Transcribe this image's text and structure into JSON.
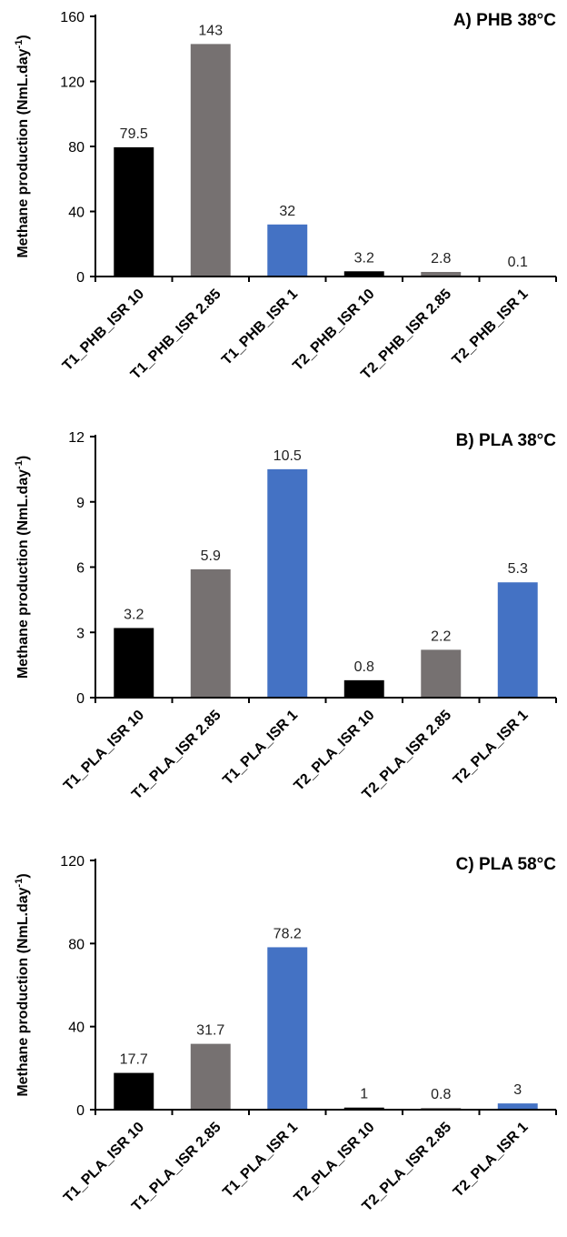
{
  "colors": {
    "black_bar": "#000000",
    "gray_bar": "#767171",
    "blue_bar": "#4472C4",
    "axis": "#000000"
  },
  "chart_data": [
    {
      "type": "bar",
      "title": "A) PHB 38°C",
      "ylabel": "Methane production (NmL.day",
      "ylabel_sup": "-1",
      "ylabel_close": ")",
      "ylim": [
        0,
        160
      ],
      "yticks": [
        0,
        40,
        80,
        120,
        160
      ],
      "categories": [
        "T1_PHB_ISR 10",
        "T1_PHB_ISR 2.85",
        "T1_PHB_ISR 1",
        "T2_PHB_ISR 10",
        "T2_PHB_ISR 2.85",
        "T2_PHB_ISR 1"
      ],
      "values": [
        79.5,
        143,
        32,
        3.2,
        2.8,
        0.1
      ],
      "labels": [
        "79.5",
        "143",
        "32",
        "3.2",
        "2.8",
        "0.1"
      ],
      "bar_colors": [
        "#000000",
        "#767171",
        "#4472C4",
        "#000000",
        "#767171",
        "#4472C4"
      ],
      "grid": false
    },
    {
      "type": "bar",
      "title": "B) PLA 38°C",
      "ylabel": "Methane production (NmL.day",
      "ylabel_sup": "-1",
      "ylabel_close": ")",
      "ylim": [
        0,
        12
      ],
      "yticks": [
        0,
        3,
        6,
        9,
        12
      ],
      "categories": [
        "T1_PLA_ISR 10",
        "T1_PLA_ISR 2.85",
        "T1_PLA_ISR 1",
        "T2_PLA_ISR 10",
        "T2_PLA_ISR 2.85",
        "T2_PLA_ISR 1"
      ],
      "values": [
        3.2,
        5.9,
        10.5,
        0.8,
        2.2,
        5.3
      ],
      "labels": [
        "3.2",
        "5.9",
        "10.5",
        "0.8",
        "2.2",
        "5.3"
      ],
      "bar_colors": [
        "#000000",
        "#767171",
        "#4472C4",
        "#000000",
        "#767171",
        "#4472C4"
      ],
      "grid": false
    },
    {
      "type": "bar",
      "title": "C) PLA 58°C",
      "ylabel": "Methane production (NmL.day",
      "ylabel_sup": "-1",
      "ylabel_close": ")",
      "ylim": [
        0,
        120
      ],
      "yticks": [
        0,
        40,
        80,
        120
      ],
      "categories": [
        "T1_PLA_ISR 10",
        "T1_PLA_ISR 2.85",
        "T1_PLA_ISR 1",
        "T2_PLA_ISR 10",
        "T2_PLA_ISR 2.85",
        "T2_PLA_ISR 1"
      ],
      "values": [
        17.7,
        31.7,
        78.2,
        1,
        0.8,
        3
      ],
      "labels": [
        "17.7",
        "31.7",
        "78.2",
        "1",
        "0.8",
        "3"
      ],
      "bar_colors": [
        "#000000",
        "#767171",
        "#4472C4",
        "#000000",
        "#767171",
        "#4472C4"
      ],
      "grid": false
    }
  ]
}
